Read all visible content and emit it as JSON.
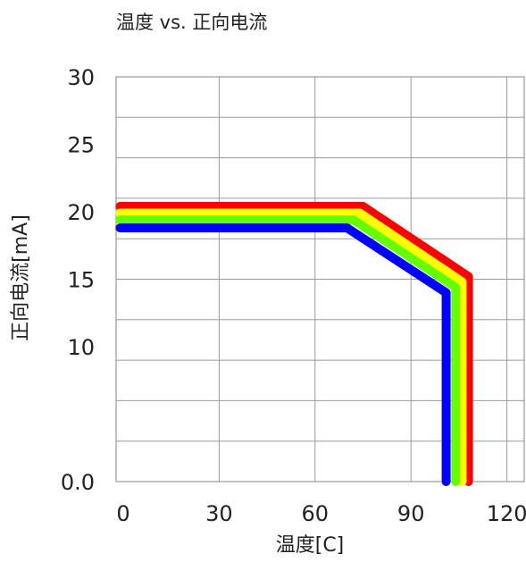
{
  "chart_data": {
    "type": "line",
    "title": "温度 vs. 正向电流",
    "xlabel": "温度[C]",
    "ylabel": "正向电流[mA]",
    "xlim": [
      0,
      120
    ],
    "ylim": [
      0,
      30
    ],
    "x_ticks": [
      "0",
      "30",
      "60",
      "90",
      "120"
    ],
    "x_tick_values": [
      0,
      30,
      60,
      90,
      120
    ],
    "y_ticks": [
      "0.0",
      "10",
      "15",
      "20",
      "25",
      "30"
    ],
    "y_tick_values": [
      0,
      10,
      15,
      20,
      25,
      30
    ],
    "grid": true,
    "legend": "none",
    "series": [
      {
        "color": "#ff0000",
        "points": [
          [
            -1,
            20.4
          ],
          [
            75,
            20.4
          ],
          [
            108,
            15.2
          ],
          [
            108,
            0
          ]
        ]
      },
      {
        "color": "#ffff00",
        "points": [
          [
            -1,
            19.9
          ],
          [
            74,
            19.9
          ],
          [
            106,
            14.8
          ],
          [
            106,
            0
          ]
        ]
      },
      {
        "color": "#66ff00",
        "points": [
          [
            -1,
            19.4
          ],
          [
            72,
            19.4
          ],
          [
            104,
            14.4
          ],
          [
            104,
            0
          ]
        ]
      },
      {
        "color": "#0000ff",
        "points": [
          [
            -1,
            18.8
          ],
          [
            70,
            18.8
          ],
          [
            101,
            14.0
          ],
          [
            101,
            0
          ]
        ]
      }
    ]
  }
}
